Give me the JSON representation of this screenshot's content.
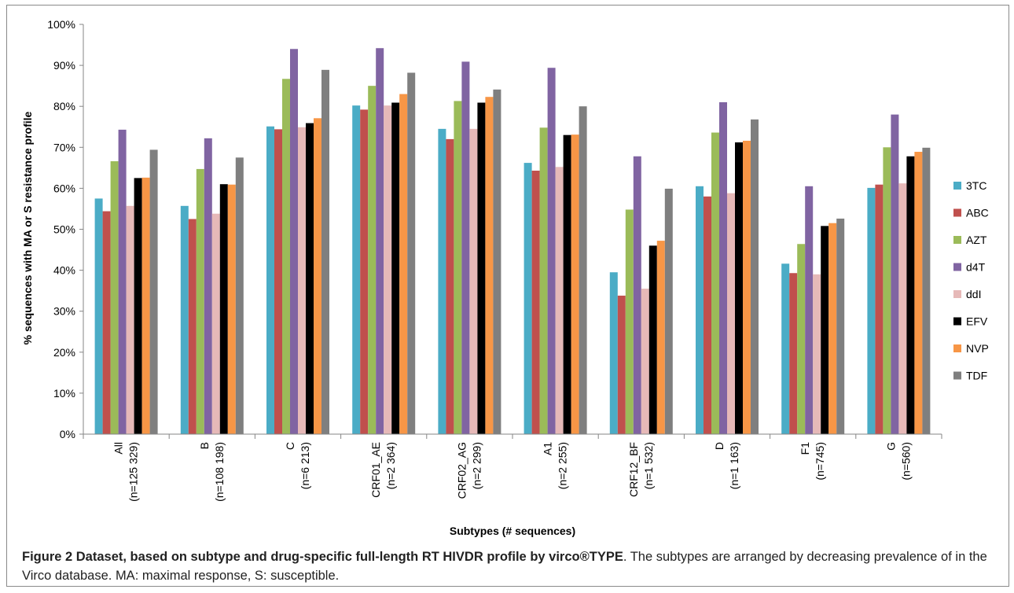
{
  "chart_data": {
    "type": "bar",
    "title": "",
    "xlabel": "Subtypes (# sequences)",
    "ylabel": "% sequences with MA or S resistance profile",
    "ylim": [
      0,
      100
    ],
    "ytick_step": 10,
    "ytick_suffix": "%",
    "grid": false,
    "legend_position": "right",
    "categories": [
      {
        "name": "All",
        "count": "(n=125 329)"
      },
      {
        "name": "B",
        "count": "(n=108 198)"
      },
      {
        "name": "C",
        "count": "(n=6 213)"
      },
      {
        "name": "CRF01_AE",
        "count": "(n=2 364)"
      },
      {
        "name": "CRF02_AG",
        "count": "(n=2 299)"
      },
      {
        "name": "A1",
        "count": "(n=2 255)"
      },
      {
        "name": "CRF12_BF",
        "count": "(n=1 532)"
      },
      {
        "name": "D",
        "count": "(n=1 163)"
      },
      {
        "name": "F1",
        "count": "(n=745)"
      },
      {
        "name": "G",
        "count": "(n=560)"
      }
    ],
    "series": [
      {
        "name": "3TC",
        "color": "#4bacc6",
        "values": [
          57.5,
          55.7,
          75.1,
          80.2,
          74.5,
          66.2,
          39.5,
          60.5,
          41.6,
          60.1
        ]
      },
      {
        "name": "ABC",
        "color": "#c0504d",
        "values": [
          54.4,
          52.5,
          74.4,
          79.2,
          72.0,
          64.3,
          33.8,
          58.0,
          39.3,
          60.9
        ]
      },
      {
        "name": "AZT",
        "color": "#9bbb59",
        "values": [
          66.6,
          64.7,
          86.7,
          85.0,
          81.3,
          74.8,
          54.8,
          73.6,
          46.4,
          70.0
        ]
      },
      {
        "name": "d4T",
        "color": "#8064a2",
        "values": [
          74.3,
          72.2,
          94.0,
          94.2,
          90.9,
          89.4,
          67.8,
          81.0,
          60.5,
          78.0
        ]
      },
      {
        "name": "ddI",
        "color": "#e6b9b8",
        "values": [
          55.7,
          53.8,
          74.9,
          80.2,
          74.5,
          65.2,
          35.5,
          58.8,
          39.0,
          61.2
        ]
      },
      {
        "name": "EFV",
        "color": "#000000",
        "values": [
          62.5,
          61.0,
          75.9,
          80.9,
          80.9,
          73.0,
          46.0,
          71.2,
          50.8,
          67.8
        ]
      },
      {
        "name": "NVP",
        "color": "#f79646",
        "values": [
          62.6,
          60.9,
          77.1,
          83.0,
          82.3,
          73.1,
          47.2,
          71.6,
          51.5,
          68.9
        ]
      },
      {
        "name": "TDF",
        "color": "#7f7f7f",
        "values": [
          69.4,
          67.5,
          88.9,
          88.2,
          84.1,
          80.0,
          59.9,
          76.8,
          52.6,
          69.9
        ]
      }
    ]
  },
  "caption": {
    "label": "Figure 2 Dataset, based on subtype and drug-specific full-length RT HIVDR profile by virco®TYPE",
    "text": ". The subtypes are arranged by decreasing prevalence of in the Virco database. MA: maximal response, S: susceptible."
  }
}
